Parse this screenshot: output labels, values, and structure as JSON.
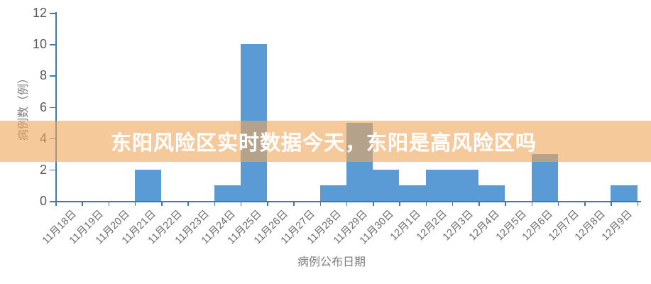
{
  "banner": {
    "text": "东阳风险区实时数据今天，东阳是高风险区吗",
    "bg_color": "rgba(238,166,90,0.61)",
    "text_color": "#ffffff"
  },
  "chart_data": {
    "type": "bar",
    "title": "",
    "categories": [
      "11月18日",
      "11月19日",
      "11月20日",
      "11月21日",
      "11月22日",
      "11月23日",
      "11月24日",
      "11月25日",
      "11月26日",
      "11月27日",
      "11月28日",
      "11月29日",
      "11月30日",
      "12月1日",
      "12月2日",
      "12月3日",
      "12月4日",
      "12月5日",
      "12月6日",
      "12月7日",
      "12月8日",
      "12月9日"
    ],
    "values": [
      0,
      0,
      0,
      2,
      0,
      0,
      1,
      10,
      0,
      0,
      1,
      5,
      2,
      1,
      2,
      2,
      1,
      0,
      3,
      0,
      0,
      1
    ],
    "xlabel": "病例公布日期",
    "ylabel": "病例数（例）",
    "ylim": [
      0,
      12
    ],
    "yticks": [
      0,
      2,
      4,
      6,
      8,
      10,
      12
    ],
    "grid": false,
    "legend": "none",
    "bar_color": "#5B9BD5",
    "axis_color": "#3D7AB0",
    "ytick_label_color": "#595959",
    "xtick_label_color": "#6b6b6b",
    "axis_title_color": "#7f7f7f"
  }
}
